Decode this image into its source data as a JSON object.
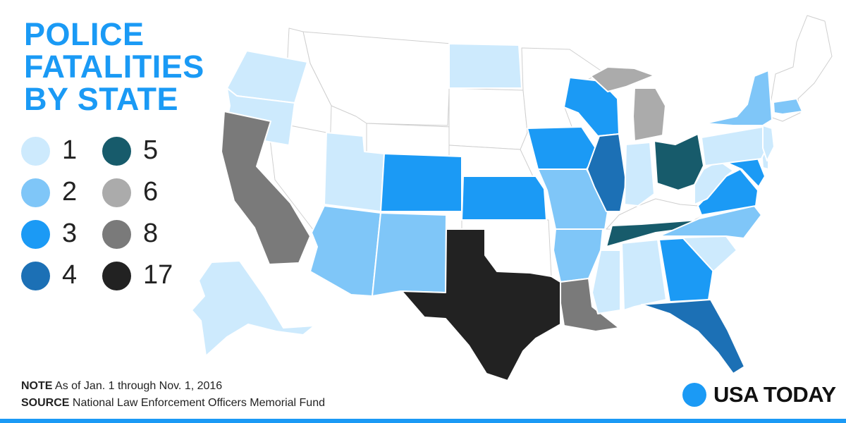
{
  "title": {
    "line1": "POLICE",
    "line2": "FATALITIES",
    "line3": "BY STATE"
  },
  "legend": [
    {
      "value": "1",
      "color": "#cdeafd"
    },
    {
      "value": "2",
      "color": "#7fc6f8"
    },
    {
      "value": "3",
      "color": "#1b9af5"
    },
    {
      "value": "4",
      "color": "#1c70b5"
    },
    {
      "value": "5",
      "color": "#175b6b"
    },
    {
      "value": "6",
      "color": "#ababab"
    },
    {
      "value": "8",
      "color": "#7a7a7a"
    },
    {
      "value": "17",
      "color": "#222222"
    }
  ],
  "states": {
    "WA": 1,
    "OR": 1,
    "CA": 8,
    "AK": 1,
    "UT": 1,
    "AZ": 2,
    "CO": 3,
    "NM": 2,
    "ND": 1,
    "KS": 3,
    "TX": 17,
    "IA": 3,
    "MO": 2,
    "AR": 2,
    "LA": 8,
    "WI": 3,
    "IL": 4,
    "MI": 6,
    "MI-UP": 6,
    "IN": 1,
    "OH": 5,
    "KY": 0,
    "TN": 5,
    "MS": 1,
    "AL": 1,
    "GA": 3,
    "FL": 4,
    "SC": 1,
    "NC": 2,
    "VA": 3,
    "WV": 1,
    "MD": 3,
    "PA": 1,
    "NJ": 1,
    "NY": 2,
    "MA": 2,
    "DE": 1
  },
  "note": {
    "label": "NOTE",
    "text": "As of Jan. 1 through Nov. 1, 2016"
  },
  "source": {
    "label": "SOURCE",
    "text": "National Law Enforcement Officers Memorial Fund"
  },
  "brand": {
    "name": "USA TODAY",
    "color": "#1b9af5"
  },
  "accent_bar_color": "#1b9af5"
}
